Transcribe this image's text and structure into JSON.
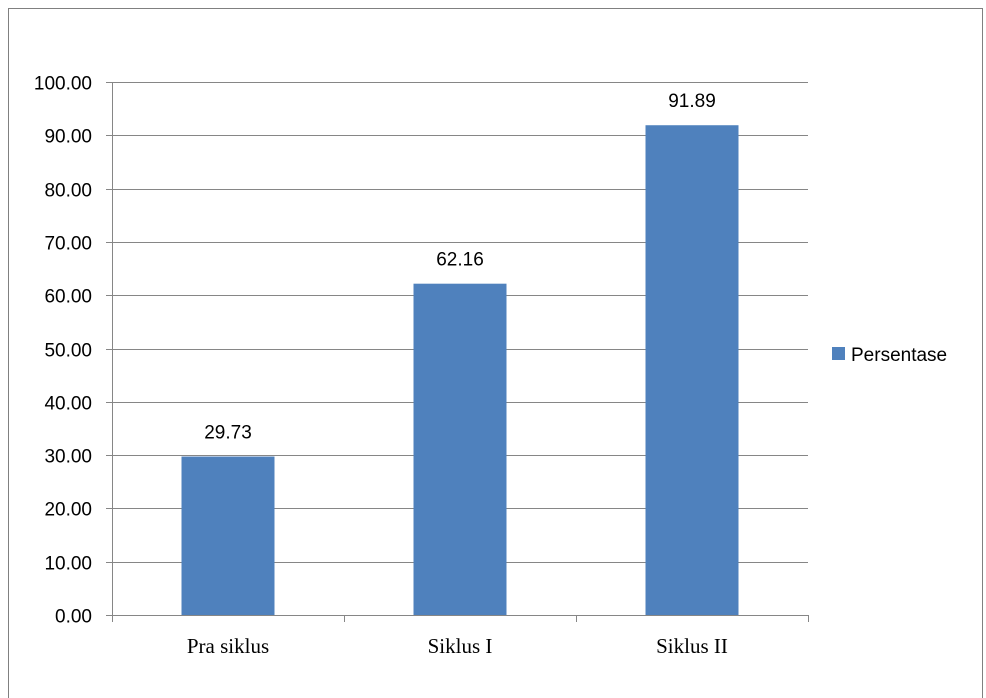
{
  "chart_data": {
    "type": "bar",
    "categories": [
      "Pra siklus",
      "Siklus I",
      "Siklus II"
    ],
    "series": [
      {
        "name": "Persentase",
        "values": [
          29.73,
          62.16,
          91.89
        ],
        "color": "#4f81bd"
      }
    ],
    "data_labels": [
      "29.73",
      "62.16",
      "91.89"
    ],
    "y_ticks": [
      "0.00",
      "10.00",
      "20.00",
      "30.00",
      "40.00",
      "50.00",
      "60.00",
      "70.00",
      "80.00",
      "90.00",
      "100.00"
    ],
    "ylim": [
      0,
      100
    ],
    "y_step": 10,
    "grid": true,
    "legend_position": "right",
    "title": "",
    "xlabel": "",
    "ylabel": ""
  },
  "colors": {
    "bar": "#4f81bd",
    "grid": "#868686",
    "frame": "#808080"
  }
}
